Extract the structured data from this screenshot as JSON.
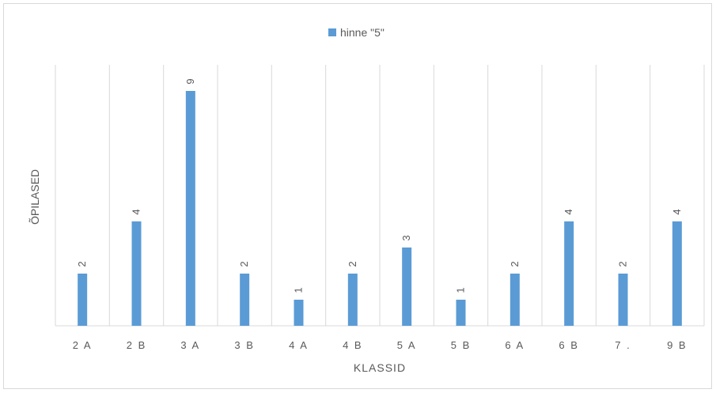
{
  "chart_data": {
    "type": "bar",
    "title": "",
    "xlabel": "KLASSID",
    "ylabel": "ÕPILASED",
    "categories": [
      "2 A",
      "2 B",
      "3 A",
      "3 B",
      "4 A",
      "4 B",
      "5 A",
      "5 B",
      "6 A",
      "6 B",
      "7 .",
      "9 B"
    ],
    "series": [
      {
        "name": "hinne \"5\"",
        "values": [
          2,
          4,
          9,
          2,
          1,
          2,
          3,
          1,
          2,
          4,
          2,
          4
        ],
        "color": "#5b9bd5"
      }
    ],
    "ylim": [
      0,
      10
    ],
    "grid": "vertical",
    "legend_position": "top-center",
    "data_labels": true
  }
}
